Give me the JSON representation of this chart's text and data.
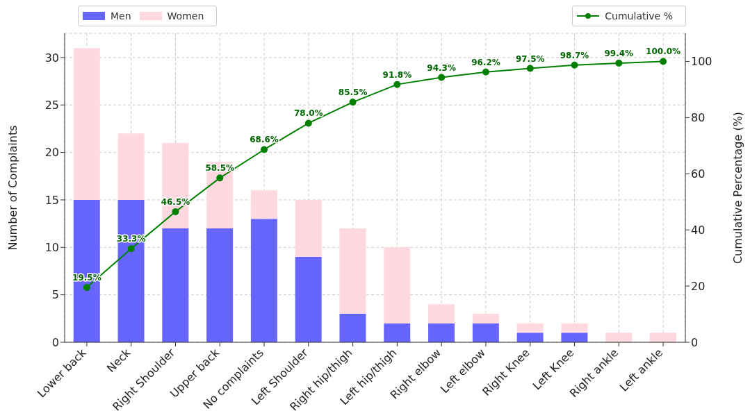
{
  "chart_data": {
    "type": "bar",
    "stacked": true,
    "categories": [
      "Lower back",
      "Neck",
      "Right Shoulder",
      "Upper back",
      "No complaints",
      "Left Shoulder",
      "Right hip/thigh",
      "Left hip/thigh",
      "Right elbow",
      "Left elbow",
      "Right Knee",
      "Left Knee",
      "Right ankle",
      "Left ankle"
    ],
    "series": [
      {
        "name": "Men",
        "color": "#6666ff",
        "values": [
          15,
          15,
          12,
          12,
          13,
          9,
          3,
          2,
          2,
          2,
          1,
          1,
          0,
          0
        ]
      },
      {
        "name": "Women",
        "color": "#ffd9df",
        "values": [
          16,
          7,
          9,
          7,
          3,
          6,
          9,
          8,
          2,
          1,
          1,
          1,
          1,
          1
        ]
      },
      {
        "name": "Cumulative %",
        "type": "line",
        "axis": "y2",
        "color": "#008000",
        "marker": "circle",
        "values": [
          19.5,
          33.3,
          46.5,
          58.5,
          68.6,
          78.0,
          85.5,
          91.8,
          94.3,
          96.2,
          97.5,
          98.7,
          99.4,
          100.0
        ],
        "value_labels": [
          "19.5%",
          "33.3%",
          "46.5%",
          "58.5%",
          "68.6%",
          "78.0%",
          "85.5%",
          "91.8%",
          "94.3%",
          "96.2%",
          "97.5%",
          "98.7%",
          "99.4%",
          "100.0%"
        ]
      }
    ],
    "ylabel": "Number of Complaints",
    "y2label": "Cumulative Percentage (%)",
    "ylim": [
      0,
      32.55
    ],
    "yticks": [
      0,
      5,
      10,
      15,
      20,
      25,
      30
    ],
    "y2lim": [
      0,
      110
    ],
    "y2ticks": [
      0,
      20,
      40,
      60,
      80,
      100
    ],
    "grid": true,
    "legend": "top left"
  }
}
